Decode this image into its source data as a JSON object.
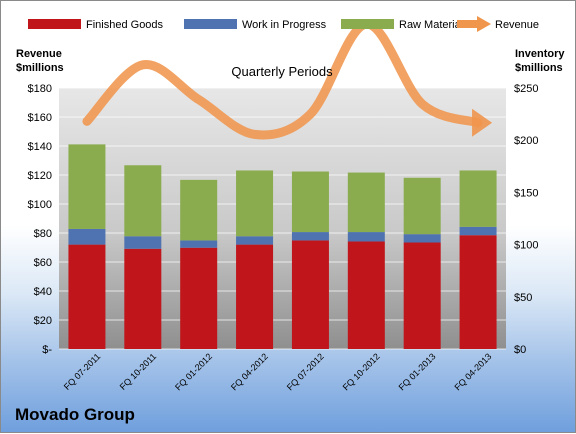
{
  "chart_data": {
    "type": "bar",
    "title": "Quarterly Periods",
    "company": "Movado Group",
    "left_axis": {
      "label_line1": "Revenue",
      "label_line2": "$millions",
      "ylim": [
        0,
        180
      ],
      "ticks": [
        "$-",
        "$20",
        "$40",
        "$60",
        "$80",
        "$100",
        "$120",
        "$140",
        "$160",
        "$180"
      ]
    },
    "right_axis": {
      "label_line1": "Inventory",
      "label_line2": "$millions",
      "ylim": [
        0,
        250
      ],
      "ticks": [
        "$0",
        "$50",
        "$100",
        "$150",
        "$200",
        "$250"
      ]
    },
    "categories": [
      "FQ 07-2011",
      "FQ 10-2011",
      "FQ 01-2012",
      "FQ 04-2012",
      "FQ 07-2012",
      "FQ 10-2012",
      "FQ 01-2013",
      "FQ 04-2013"
    ],
    "series": [
      {
        "name": "Finished Goods",
        "kind": "stacked-bar",
        "axis": "right",
        "color": "#c0151b",
        "values": [
          100,
          96,
          97,
          100,
          104,
          103,
          102,
          109
        ]
      },
      {
        "name": "Work in Progress",
        "kind": "stacked-bar",
        "axis": "right",
        "color": "#4f73b0",
        "values": [
          15,
          12,
          7,
          8,
          8,
          9,
          8,
          8
        ]
      },
      {
        "name": "Raw Materials",
        "kind": "stacked-bar",
        "axis": "right",
        "color": "#8aac4e",
        "values": [
          81,
          68,
          58,
          63,
          58,
          57,
          54,
          54
        ]
      },
      {
        "name": "Revenue",
        "kind": "arrow-line",
        "axis": "left",
        "color": "#f0954c",
        "values": [
          157,
          196,
          172,
          148,
          162,
          224,
          169,
          156
        ]
      }
    ],
    "grid": true,
    "legend_position": "top"
  }
}
